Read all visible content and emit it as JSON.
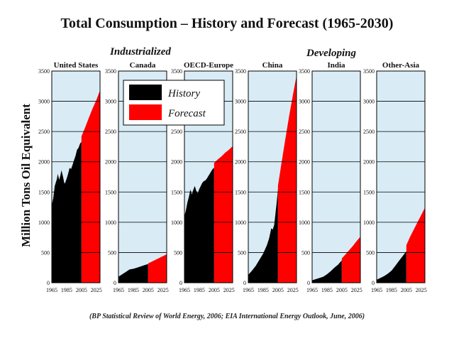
{
  "title": "Total Consumption – History and Forecast (1965-2030)",
  "source": "(BP Statistical Review of World Energy, 2006; EIA International Energy Outlook, June, 2006)",
  "colors": {
    "history": "#000000",
    "forecast": "#ff0000",
    "background": "#d9ecf6",
    "grid": "#000000"
  },
  "chart_data": {
    "type": "area",
    "ylabel": "Million Tons Oil Equivalent",
    "ylim": [
      0,
      3500
    ],
    "yticks": [
      "0",
      "500",
      "1000",
      "1500",
      "2000",
      "2500",
      "3000",
      "3500"
    ],
    "xlim": [
      1965,
      2030
    ],
    "xticks": [
      "1965",
      "1985",
      "2005",
      "2025"
    ],
    "history_end": 2005,
    "groups": [
      "Industrialized",
      "Developing"
    ],
    "legend": [
      "History",
      "Forecast"
    ],
    "series": [
      {
        "name": "United States",
        "history": [
          [
            1965,
            1280
          ],
          [
            1967,
            1400
          ],
          [
            1969,
            1600
          ],
          [
            1972,
            1720
          ],
          [
            1973,
            1800
          ],
          [
            1975,
            1700
          ],
          [
            1977,
            1800
          ],
          [
            1978,
            1860
          ],
          [
            1980,
            1760
          ],
          [
            1982,
            1640
          ],
          [
            1983,
            1650
          ],
          [
            1985,
            1720
          ],
          [
            1987,
            1800
          ],
          [
            1989,
            1900
          ],
          [
            1991,
            1880
          ],
          [
            1993,
            1950
          ],
          [
            1995,
            2030
          ],
          [
            1997,
            2100
          ],
          [
            1999,
            2200
          ],
          [
            2001,
            2230
          ],
          [
            2003,
            2300
          ],
          [
            2005,
            2330
          ]
        ],
        "forecast": [
          [
            2005,
            2420
          ],
          [
            2010,
            2570
          ],
          [
            2015,
            2730
          ],
          [
            2020,
            2880
          ],
          [
            2025,
            3020
          ],
          [
            2030,
            3180
          ]
        ]
      },
      {
        "name": "Canada",
        "history": [
          [
            1965,
            100
          ],
          [
            1970,
            140
          ],
          [
            1975,
            180
          ],
          [
            1980,
            220
          ],
          [
            1985,
            230
          ],
          [
            1990,
            250
          ],
          [
            1995,
            270
          ],
          [
            2000,
            290
          ],
          [
            2005,
            310
          ]
        ],
        "forecast": [
          [
            2005,
            320
          ],
          [
            2010,
            350
          ],
          [
            2015,
            380
          ],
          [
            2020,
            410
          ],
          [
            2025,
            440
          ],
          [
            2030,
            470
          ]
        ]
      },
      {
        "name": "OECD-Europe",
        "history": [
          [
            1965,
            1100
          ],
          [
            1967,
            1200
          ],
          [
            1969,
            1330
          ],
          [
            1971,
            1420
          ],
          [
            1973,
            1540
          ],
          [
            1975,
            1460
          ],
          [
            1977,
            1540
          ],
          [
            1979,
            1600
          ],
          [
            1981,
            1520
          ],
          [
            1983,
            1480
          ],
          [
            1985,
            1550
          ],
          [
            1987,
            1600
          ],
          [
            1989,
            1650
          ],
          [
            1991,
            1680
          ],
          [
            1993,
            1690
          ],
          [
            1995,
            1720
          ],
          [
            1997,
            1760
          ],
          [
            1999,
            1800
          ],
          [
            2001,
            1840
          ],
          [
            2003,
            1880
          ],
          [
            2005,
            1900
          ]
        ],
        "forecast": [
          [
            2005,
            1980
          ],
          [
            2010,
            2040
          ],
          [
            2015,
            2090
          ],
          [
            2020,
            2150
          ],
          [
            2025,
            2200
          ],
          [
            2030,
            2260
          ]
        ]
      },
      {
        "name": "China",
        "history": [
          [
            1965,
            130
          ],
          [
            1970,
            200
          ],
          [
            1975,
            280
          ],
          [
            1980,
            380
          ],
          [
            1985,
            480
          ],
          [
            1990,
            620
          ],
          [
            1993,
            730
          ],
          [
            1996,
            900
          ],
          [
            1998,
            880
          ],
          [
            2000,
            960
          ],
          [
            2003,
            1300
          ],
          [
            2005,
            1550
          ]
        ],
        "forecast": [
          [
            2005,
            1600
          ],
          [
            2010,
            2000
          ],
          [
            2015,
            2380
          ],
          [
            2020,
            2750
          ],
          [
            2025,
            3100
          ],
          [
            2030,
            3420
          ]
        ]
      },
      {
        "name": "India",
        "history": [
          [
            1965,
            40
          ],
          [
            1970,
            60
          ],
          [
            1975,
            80
          ],
          [
            1980,
            100
          ],
          [
            1985,
            140
          ],
          [
            1990,
            190
          ],
          [
            1995,
            250
          ],
          [
            2000,
            300
          ],
          [
            2005,
            370
          ]
        ],
        "forecast": [
          [
            2005,
            400
          ],
          [
            2010,
            470
          ],
          [
            2015,
            540
          ],
          [
            2020,
            610
          ],
          [
            2025,
            690
          ],
          [
            2030,
            760
          ]
        ]
      },
      {
        "name": "Other-Asia",
        "history": [
          [
            1965,
            50
          ],
          [
            1970,
            80
          ],
          [
            1975,
            110
          ],
          [
            1980,
            150
          ],
          [
            1985,
            200
          ],
          [
            1990,
            280
          ],
          [
            1995,
            360
          ],
          [
            2000,
            440
          ],
          [
            2005,
            520
          ]
        ],
        "forecast": [
          [
            2005,
            620
          ],
          [
            2010,
            760
          ],
          [
            2015,
            880
          ],
          [
            2020,
            1000
          ],
          [
            2025,
            1120
          ],
          [
            2030,
            1240
          ]
        ]
      }
    ]
  }
}
